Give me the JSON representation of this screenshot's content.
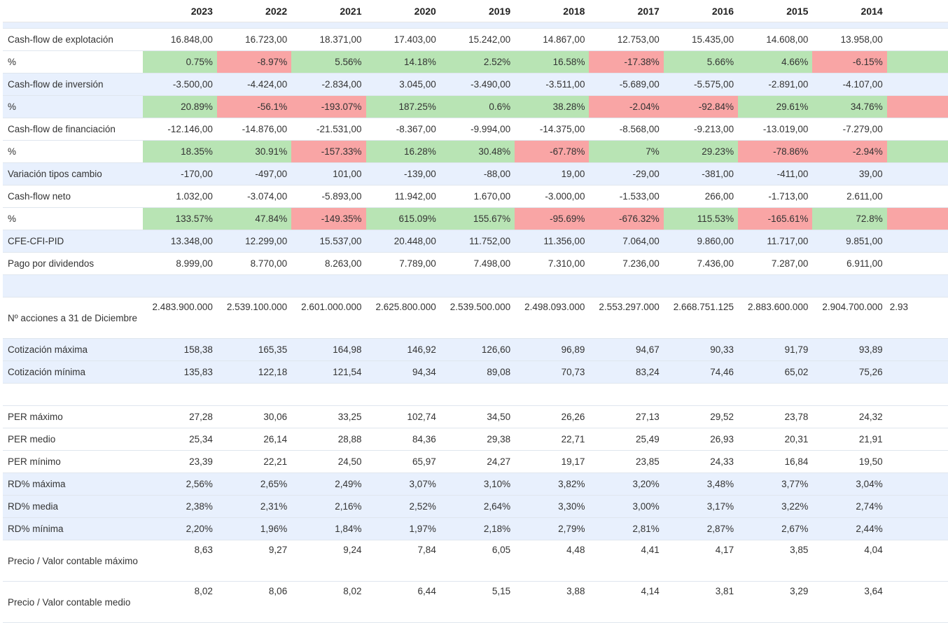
{
  "header": {
    "years": [
      "2023",
      "2022",
      "2021",
      "2020",
      "2019",
      "2018",
      "2017",
      "2016",
      "2015",
      "2014"
    ]
  },
  "colors": {
    "positive": "#b8e4b4",
    "negative": "#f9a5a5",
    "row_blue": "#e8f0fd"
  },
  "rows": [
    {
      "label": "Cash-flow de explotación",
      "values": [
        "16.848,00",
        "16.723,00",
        "18.371,00",
        "17.403,00",
        "15.242,00",
        "14.867,00",
        "12.753,00",
        "15.435,00",
        "14.608,00",
        "13.958,00"
      ]
    },
    {
      "label": "%",
      "values": [
        "0.75%",
        "-8.97%",
        "5.56%",
        "14.18%",
        "2.52%",
        "16.58%",
        "-17.38%",
        "5.66%",
        "4.66%",
        "-6.15%"
      ],
      "signs": [
        "pos",
        "neg",
        "pos",
        "pos",
        "pos",
        "pos",
        "neg",
        "pos",
        "pos",
        "neg"
      ],
      "extra_sign": "pos"
    },
    {
      "label": "Cash-flow de inversión",
      "values": [
        "-3.500,00",
        "-4.424,00",
        "-2.834,00",
        "3.045,00",
        "-3.490,00",
        "-3.511,00",
        "-5.689,00",
        "-5.575,00",
        "-2.891,00",
        "-4.107,00"
      ]
    },
    {
      "label": "%",
      "values": [
        "20.89%",
        "-56.1%",
        "-193.07%",
        "187.25%",
        "0.6%",
        "38.28%",
        "-2.04%",
        "-92.84%",
        "29.61%",
        "34.76%"
      ],
      "signs": [
        "pos",
        "neg",
        "neg",
        "pos",
        "pos",
        "pos",
        "neg",
        "neg",
        "pos",
        "pos"
      ],
      "extra_sign": "neg"
    },
    {
      "label": "Cash-flow de financiación",
      "values": [
        "-12.146,00",
        "-14.876,00",
        "-21.531,00",
        "-8.367,00",
        "-9.994,00",
        "-14.375,00",
        "-8.568,00",
        "-9.213,00",
        "-13.019,00",
        "-7.279,00"
      ]
    },
    {
      "label": "%",
      "values": [
        "18.35%",
        "30.91%",
        "-157.33%",
        "16.28%",
        "30.48%",
        "-67.78%",
        "7%",
        "29.23%",
        "-78.86%",
        "-2.94%"
      ],
      "signs": [
        "pos",
        "pos",
        "neg",
        "pos",
        "pos",
        "neg",
        "pos",
        "pos",
        "neg",
        "neg"
      ],
      "extra_sign": "pos"
    },
    {
      "label": "Variación tipos cambio",
      "values": [
        "-170,00",
        "-497,00",
        "101,00",
        "-139,00",
        "-88,00",
        "19,00",
        "-29,00",
        "-381,00",
        "-411,00",
        "39,00"
      ]
    },
    {
      "label": "Cash-flow neto",
      "values": [
        "1.032,00",
        "-3.074,00",
        "-5.893,00",
        "11.942,00",
        "1.670,00",
        "-3.000,00",
        "-1.533,00",
        "266,00",
        "-1.713,00",
        "2.611,00"
      ]
    },
    {
      "label": "%",
      "values": [
        "133.57%",
        "47.84%",
        "-149.35%",
        "615.09%",
        "155.67%",
        "-95.69%",
        "-676.32%",
        "115.53%",
        "-165.61%",
        "72.8%"
      ],
      "signs": [
        "pos",
        "pos",
        "neg",
        "pos",
        "pos",
        "neg",
        "neg",
        "pos",
        "neg",
        "pos"
      ],
      "extra_sign": "neg"
    },
    {
      "label": "CFE-CFI-PID",
      "values": [
        "13.348,00",
        "12.299,00",
        "15.537,00",
        "20.448,00",
        "11.752,00",
        "11.356,00",
        "7.064,00",
        "9.860,00",
        "11.717,00",
        "9.851,00"
      ]
    },
    {
      "label": "Pago por dividendos",
      "values": [
        "8.999,00",
        "8.770,00",
        "8.263,00",
        "7.789,00",
        "7.498,00",
        "7.310,00",
        "7.236,00",
        "7.436,00",
        "7.287,00",
        "6.911,00"
      ]
    },
    {
      "label": "Nº acciones a 31 de Diciembre",
      "values": [
        "2.483.900.000",
        "2.539.100.000",
        "2.601.000.000",
        "2.625.800.000",
        "2.539.500.000",
        "2.498.093.000",
        "2.553.297.000",
        "2.668.751.125",
        "2.883.600.000",
        "2.904.700.000"
      ],
      "extra": "2.93"
    },
    {
      "label": "Cotización máxima",
      "values": [
        "158,38",
        "165,35",
        "164,98",
        "146,92",
        "126,60",
        "96,89",
        "94,67",
        "90,33",
        "91,79",
        "93,89"
      ]
    },
    {
      "label": "Cotización mínima",
      "values": [
        "135,83",
        "122,18",
        "121,54",
        "94,34",
        "89,08",
        "70,73",
        "83,24",
        "74,46",
        "65,02",
        "75,26"
      ]
    },
    {
      "label": "PER máximo",
      "values": [
        "27,28",
        "30,06",
        "33,25",
        "102,74",
        "34,50",
        "26,26",
        "27,13",
        "29,52",
        "23,78",
        "24,32"
      ]
    },
    {
      "label": "PER medio",
      "values": [
        "25,34",
        "26,14",
        "28,88",
        "84,36",
        "29,38",
        "22,71",
        "25,49",
        "26,93",
        "20,31",
        "21,91"
      ]
    },
    {
      "label": "PER mínimo",
      "values": [
        "23,39",
        "22,21",
        "24,50",
        "65,97",
        "24,27",
        "19,17",
        "23,85",
        "24,33",
        "16,84",
        "19,50"
      ]
    },
    {
      "label": "RD% máxima",
      "values": [
        "2,56%",
        "2,65%",
        "2,49%",
        "3,07%",
        "3,10%",
        "3,82%",
        "3,20%",
        "3,48%",
        "3,77%",
        "3,04%"
      ]
    },
    {
      "label": "RD% media",
      "values": [
        "2,38%",
        "2,31%",
        "2,16%",
        "2,52%",
        "2,64%",
        "3,30%",
        "3,00%",
        "3,17%",
        "3,22%",
        "2,74%"
      ]
    },
    {
      "label": "RD% mínima",
      "values": [
        "2,20%",
        "1,96%",
        "1,84%",
        "1,97%",
        "2,18%",
        "2,79%",
        "2,81%",
        "2,87%",
        "2,67%",
        "2,44%"
      ]
    },
    {
      "label": "Precio / Valor contable máximo",
      "values": [
        "8,63",
        "9,27",
        "9,24",
        "7,84",
        "6,05",
        "4,48",
        "4,41",
        "4,17",
        "3,85",
        "4,04"
      ]
    },
    {
      "label": "Precio / Valor contable medio",
      "values": [
        "8,02",
        "8,06",
        "8,02",
        "6,44",
        "5,15",
        "3,88",
        "4,14",
        "3,81",
        "3,29",
        "3,64"
      ]
    }
  ]
}
